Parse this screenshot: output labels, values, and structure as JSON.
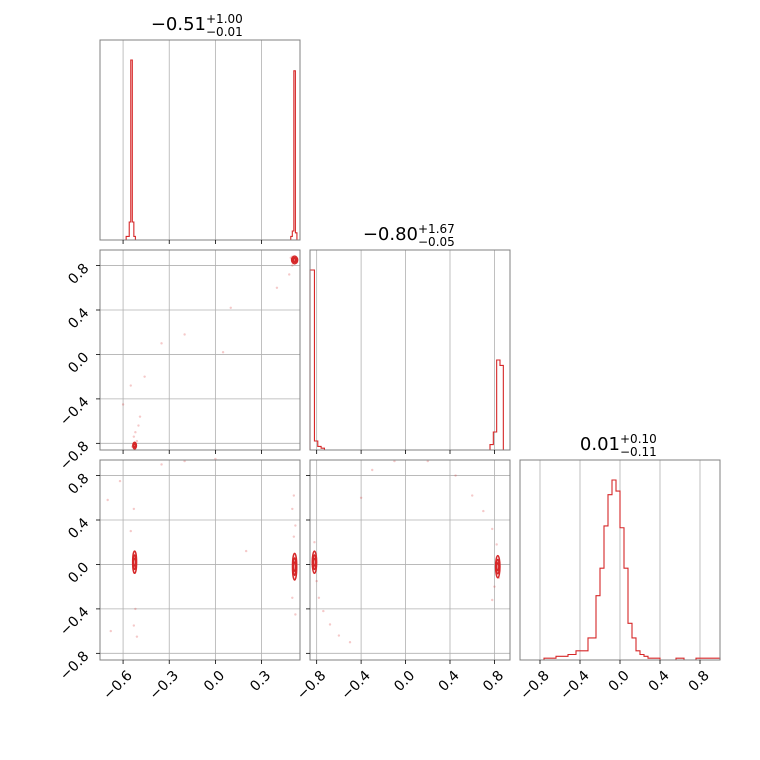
{
  "figure": {
    "type": "corner-plot"
  },
  "colors": {
    "series": "#d62728",
    "frame": "#808080",
    "grid": "#b0b0b0"
  },
  "chart_data": [
    {
      "type": "histogram",
      "panel": "p00",
      "title": {
        "median": "−0.51",
        "plus": "+1.00",
        "minus": "−0.01"
      },
      "range": [
        -0.75,
        0.55
      ],
      "grid_ticks": [
        -0.6,
        -0.3,
        0.0,
        0.3
      ],
      "bin_edges": [
        -0.75,
        -0.58,
        -0.56,
        -0.55,
        -0.54,
        -0.53,
        -0.52,
        -0.51,
        0.49,
        0.5,
        0.51,
        0.52,
        0.53,
        0.55
      ],
      "counts": [
        0,
        0.02,
        0.1,
        1.0,
        0.1,
        0.02,
        0,
        0,
        0.02,
        0.05,
        0.94,
        0.04,
        0
      ]
    },
    {
      "type": "histogram",
      "panel": "p11",
      "title": {
        "median": "−0.80",
        "plus": "+1.67",
        "minus": "−0.05"
      },
      "range": [
        -0.86,
        0.94
      ],
      "grid_ticks": [
        -0.8,
        -0.4,
        0.0,
        0.4,
        0.8
      ],
      "bin_edges": [
        -0.86,
        -0.82,
        -0.79,
        -0.76,
        -0.73,
        -0.7,
        0.76,
        0.79,
        0.82,
        0.85,
        0.88,
        0.94
      ],
      "counts": [
        1.0,
        0.05,
        0.02,
        0.01,
        0.0,
        0.0,
        0.03,
        0.1,
        0.5,
        0.47,
        0.0
      ]
    },
    {
      "type": "histogram",
      "panel": "p22",
      "title": {
        "median": "0.01",
        "plus": "+0.10",
        "minus": "−0.11"
      },
      "range": [
        -1.0,
        1.0
      ],
      "grid_ticks": [
        -0.8,
        -0.4,
        0.0,
        0.4,
        0.8
      ],
      "xticks": [
        "−0.8",
        "−0.4",
        "0.0",
        "0.4",
        "0.8"
      ],
      "bin_edges": [
        -1.0,
        -0.76,
        -0.64,
        -0.52,
        -0.44,
        -0.32,
        -0.24,
        -0.2,
        -0.16,
        -0.12,
        -0.08,
        -0.04,
        0.0,
        0.04,
        0.08,
        0.12,
        0.16,
        0.2,
        0.24,
        0.28,
        0.32,
        0.4,
        0.48,
        0.56,
        0.64,
        0.76,
        1.0
      ],
      "counts": [
        0.0,
        0.01,
        0.02,
        0.03,
        0.05,
        0.12,
        0.35,
        0.5,
        0.73,
        0.9,
        0.98,
        0.92,
        0.72,
        0.5,
        0.2,
        0.12,
        0.05,
        0.03,
        0.02,
        0.01,
        0.01,
        0.0,
        0.0,
        0.01,
        0.0,
        0.01
      ]
    },
    {
      "type": "scatter",
      "panel": "p10",
      "xrange": [
        -0.75,
        0.55
      ],
      "yrange": [
        -0.86,
        0.94
      ],
      "grid_x": [
        -0.6,
        -0.3,
        0.0,
        0.3
      ],
      "grid_y": [
        -0.8,
        -0.4,
        0.0,
        0.4,
        0.8
      ],
      "yticks": [
        "−0.8",
        "−0.4",
        "0.0",
        "0.4",
        "0.8"
      ],
      "points": [
        [
          -0.53,
          -0.82
        ],
        [
          -0.52,
          -0.8
        ],
        [
          -0.54,
          -0.83
        ],
        [
          -0.51,
          -0.78
        ],
        [
          -0.53,
          -0.74
        ],
        [
          -0.52,
          -0.7
        ],
        [
          -0.5,
          -0.64
        ],
        [
          -0.49,
          -0.56
        ],
        [
          -0.55,
          -0.28
        ],
        [
          -0.6,
          -0.45
        ],
        [
          -0.46,
          -0.2
        ],
        [
          -0.35,
          0.1
        ],
        [
          -0.2,
          0.18
        ],
        [
          0.1,
          0.42
        ],
        [
          0.05,
          0.02
        ],
        [
          0.4,
          0.6
        ],
        [
          0.48,
          0.72
        ],
        [
          0.5,
          0.8
        ],
        [
          0.51,
          0.86
        ],
        [
          0.52,
          0.84
        ],
        [
          0.5,
          0.88
        ],
        [
          0.53,
          0.83
        ],
        [
          0.49,
          0.87
        ]
      ],
      "contours": [
        {
          "cx": -0.525,
          "cy": -0.82,
          "rx": 0.012,
          "ry": 0.03
        },
        {
          "cx": 0.515,
          "cy": 0.85,
          "rx": 0.02,
          "ry": 0.035
        }
      ]
    },
    {
      "type": "scatter",
      "panel": "p20",
      "xrange": [
        -0.75,
        0.55
      ],
      "yrange": [
        -0.86,
        0.94
      ],
      "grid_x": [
        -0.6,
        -0.3,
        0.0,
        0.3
      ],
      "grid_y": [
        -0.8,
        -0.4,
        0.0,
        0.4,
        0.8
      ],
      "xticks": [
        "−0.6",
        "−0.3",
        "0.0",
        "0.3"
      ],
      "yticks": [
        "−0.8",
        "−0.4",
        "0.0",
        "0.4",
        "0.8"
      ],
      "points": [
        [
          -0.53,
          0.5
        ],
        [
          -0.52,
          -0.4
        ],
        [
          -0.53,
          -0.55
        ],
        [
          -0.51,
          -0.65
        ],
        [
          -0.55,
          0.3
        ],
        [
          -0.62,
          0.75
        ],
        [
          -0.7,
          0.58
        ],
        [
          -0.68,
          -0.6
        ],
        [
          -0.35,
          0.9
        ],
        [
          -0.2,
          0.93
        ],
        [
          0.0,
          0.95
        ],
        [
          0.2,
          0.12
        ],
        [
          0.5,
          0.5
        ],
        [
          0.51,
          0.62
        ],
        [
          0.52,
          -0.45
        ],
        [
          0.5,
          -0.3
        ],
        [
          0.51,
          0.25
        ],
        [
          0.52,
          0.35
        ]
      ],
      "contours": [
        {
          "cx": -0.525,
          "cy": 0.02,
          "rx": 0.013,
          "ry": 0.1
        },
        {
          "cx": 0.515,
          "cy": -0.02,
          "rx": 0.014,
          "ry": 0.12
        }
      ]
    },
    {
      "type": "scatter",
      "panel": "p21",
      "xrange": [
        -0.86,
        0.94
      ],
      "yrange": [
        -0.86,
        0.94
      ],
      "grid_x": [
        -0.8,
        -0.4,
        0.0,
        0.4,
        0.8
      ],
      "grid_y": [
        -0.8,
        -0.4,
        0.0,
        0.4,
        0.8
      ],
      "xticks": [
        "−0.8",
        "−0.4",
        "0.0",
        "0.4",
        "0.8"
      ],
      "points": [
        [
          -0.82,
          0.2
        ],
        [
          -0.8,
          -0.15
        ],
        [
          -0.78,
          -0.3
        ],
        [
          -0.74,
          -0.42
        ],
        [
          -0.68,
          -0.54
        ],
        [
          -0.6,
          -0.64
        ],
        [
          -0.5,
          -0.7
        ],
        [
          -0.4,
          0.6
        ],
        [
          -0.3,
          0.85
        ],
        [
          -0.1,
          0.93
        ],
        [
          0.2,
          0.93
        ],
        [
          0.45,
          0.8
        ],
        [
          0.6,
          0.62
        ],
        [
          0.7,
          0.48
        ],
        [
          0.78,
          0.32
        ],
        [
          0.82,
          0.18
        ],
        [
          0.8,
          -0.2
        ],
        [
          0.78,
          -0.32
        ],
        [
          0.84,
          -0.12
        ]
      ],
      "contours": [
        {
          "cx": -0.82,
          "cy": 0.02,
          "rx": 0.02,
          "ry": 0.1
        },
        {
          "cx": 0.83,
          "cy": -0.02,
          "rx": 0.02,
          "ry": 0.1
        }
      ]
    }
  ]
}
